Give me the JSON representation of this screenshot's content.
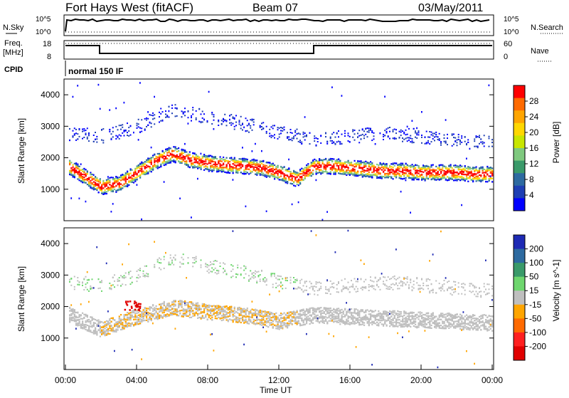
{
  "header": {
    "radar": "Fort Hays West (fitACF)",
    "beam": "Beam 07",
    "date": "03/May/2011"
  },
  "noise_panel": {
    "left_label": "N.Sky",
    "right_label": "N.Search",
    "left_ticks": [
      "10^5",
      "10^0"
    ],
    "right_ticks": [
      "10^5",
      "10^0"
    ]
  },
  "freq_panel": {
    "left_label_1": "Freq.",
    "left_label_2": "[MHz]",
    "right_label": "Nave",
    "left_ticks": [
      "18",
      "8"
    ],
    "right_ticks": [
      "60",
      "0"
    ]
  },
  "cpid": {
    "label": "CPID",
    "program": "normal 150 IF"
  },
  "power_colorbar": {
    "label": "Power [dB]",
    "ticks": [
      "28",
      "24",
      "20",
      "16",
      "12",
      "8",
      "4"
    ],
    "colors": [
      "#ff0000",
      "#ff6a00",
      "#ffa500",
      "#ffd700",
      "#c8e600",
      "#7fc97f",
      "#3a9a6a",
      "#2d6aa0",
      "#1e3fb4",
      "#0000ff"
    ]
  },
  "velocity_colorbar": {
    "label": "Velocity [m s^-1]",
    "ticks": [
      "200",
      "100",
      "50",
      "15",
      "-15",
      "-50",
      "-100",
      "-200"
    ],
    "colors": [
      "#1e2ab4",
      "#2d6aa0",
      "#3a9a6a",
      "#6ed66e",
      "#bfbfbf",
      "#ffa500",
      "#ff6a00",
      "#ff2020",
      "#e00000"
    ]
  },
  "axes": {
    "ylabel": "Slant Range [km]",
    "yticks": [
      "1000",
      "2000",
      "3000",
      "4000"
    ],
    "xlabel": "Time UT",
    "xticks": [
      "00:00",
      "04:00",
      "08:00",
      "12:00",
      "16:00",
      "20:00",
      "00:00"
    ]
  },
  "chart_data": [
    {
      "type": "heatmap",
      "title": "",
      "xlabel": "",
      "ylabel": "Slant Range [km]",
      "xlim": [
        0,
        24
      ],
      "ylim": [
        0,
        4500
      ],
      "colorbar_label": "Power [dB]",
      "features": [
        {
          "name": "main band",
          "hours": [
            0,
            1,
            2,
            3,
            4,
            5,
            6,
            7,
            8,
            9,
            10,
            11,
            12,
            13,
            14,
            15,
            16,
            17,
            18,
            19,
            20,
            21,
            22,
            23,
            24
          ],
          "range_km": [
            1800,
            1450,
            1100,
            1200,
            1550,
            1900,
            2150,
            1950,
            1850,
            1800,
            1750,
            1700,
            1550,
            1350,
            1750,
            1750,
            1700,
            1650,
            1600,
            1600,
            1550,
            1550,
            1550,
            1500,
            1500
          ]
        },
        {
          "name": "upper band",
          "hours": [
            0,
            2,
            4,
            6,
            8,
            10,
            12,
            14,
            16,
            18,
            20,
            22,
            24
          ],
          "range_km": [
            2800,
            2700,
            3000,
            3550,
            3300,
            3100,
            2800,
            2600,
            2700,
            2800,
            2700,
            2600,
            2500
          ]
        }
      ]
    },
    {
      "type": "heatmap",
      "title": "",
      "xlabel": "Time UT",
      "ylabel": "Slant Range [km]",
      "xlim": [
        0,
        24
      ],
      "ylim": [
        0,
        4500
      ],
      "colorbar_label": "Velocity [m s^-1]",
      "features": [
        {
          "name": "ground scatter band",
          "hours": [
            0,
            2,
            4,
            6,
            8,
            10,
            12,
            14,
            16,
            18,
            20,
            22,
            24
          ],
          "range_km": [
            1800,
            1300,
            1700,
            2000,
            1850,
            1750,
            1550,
            1750,
            1700,
            1650,
            1600,
            1550,
            1500
          ]
        },
        {
          "name": "negative velocity patch",
          "hours": [
            3.3,
            4.2
          ],
          "range_km": [
            1900,
            2200
          ]
        }
      ]
    }
  ]
}
